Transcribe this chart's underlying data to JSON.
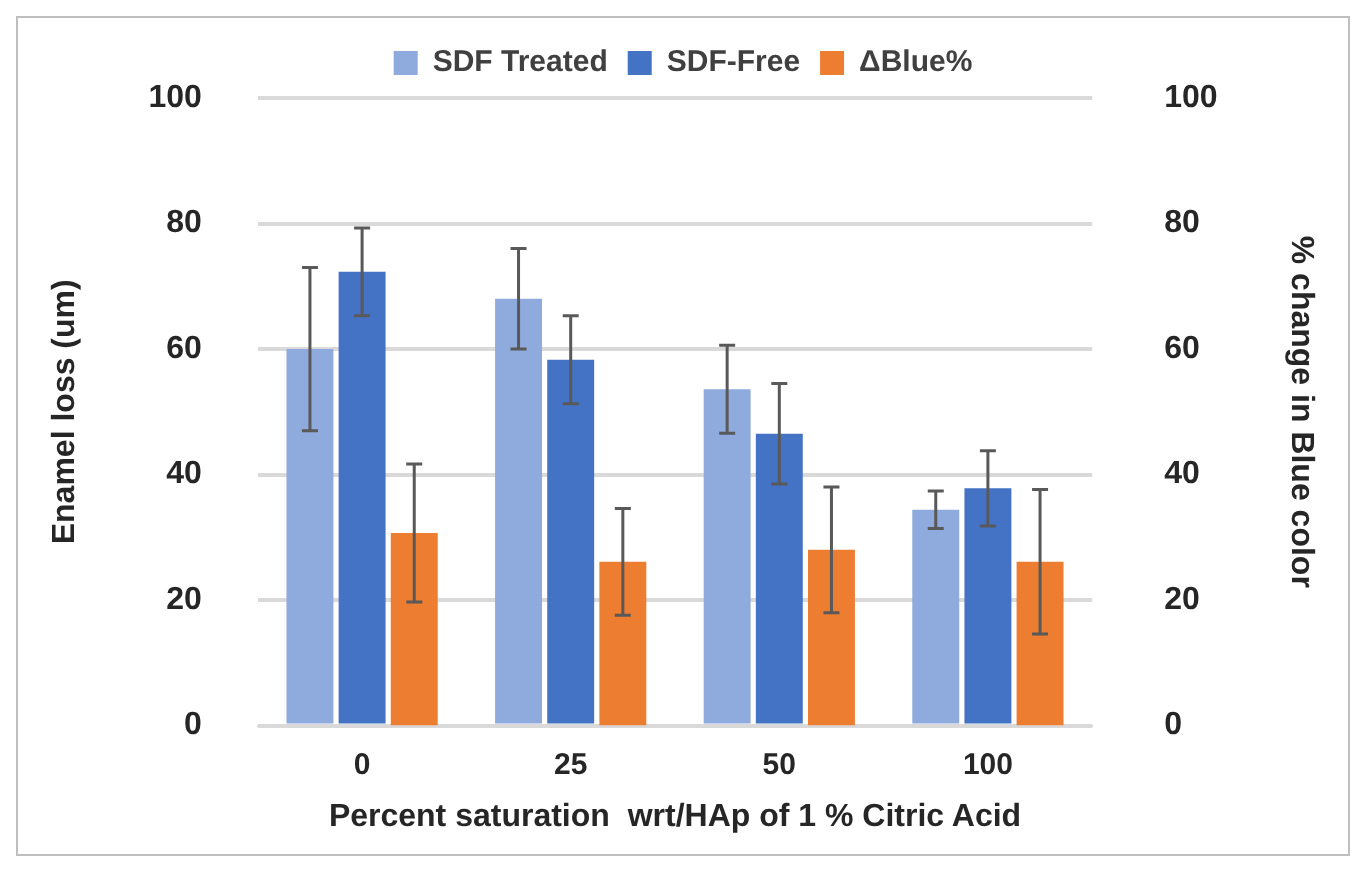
{
  "chart_data": {
    "type": "bar",
    "xlabel": "Percent saturation  wrt/HAp of 1 % Citric Acid",
    "ylabel": "Enamel loss (um)",
    "y2label": "% change in Blue color",
    "categories": [
      "0",
      "25",
      "50",
      "100"
    ],
    "series": [
      {
        "name": "SDF Treated",
        "color": "#8faadc",
        "values": [
          60,
          68,
          53.6,
          34.4
        ],
        "errors": [
          13,
          8,
          7,
          3
        ]
      },
      {
        "name": "SDF-Free",
        "color": "#4472c4",
        "values": [
          72.3,
          58.3,
          46.5,
          37.8
        ],
        "errors": [
          7,
          7,
          8,
          6
        ]
      },
      {
        "name": "ΔBlue%",
        "color": "#ed7d31",
        "axis": "y2",
        "values": [
          30.7,
          26.1,
          28,
          26.1
        ],
        "errors": [
          11,
          8.5,
          10,
          11.5
        ]
      }
    ],
    "ylim": [
      0,
      100
    ],
    "yticks": [
      0,
      20,
      40,
      60,
      80,
      100
    ],
    "y2lim": [
      0,
      100
    ],
    "y2ticks": [
      0,
      20,
      40,
      60,
      80,
      100
    ],
    "grid": "y",
    "legend": "top"
  }
}
